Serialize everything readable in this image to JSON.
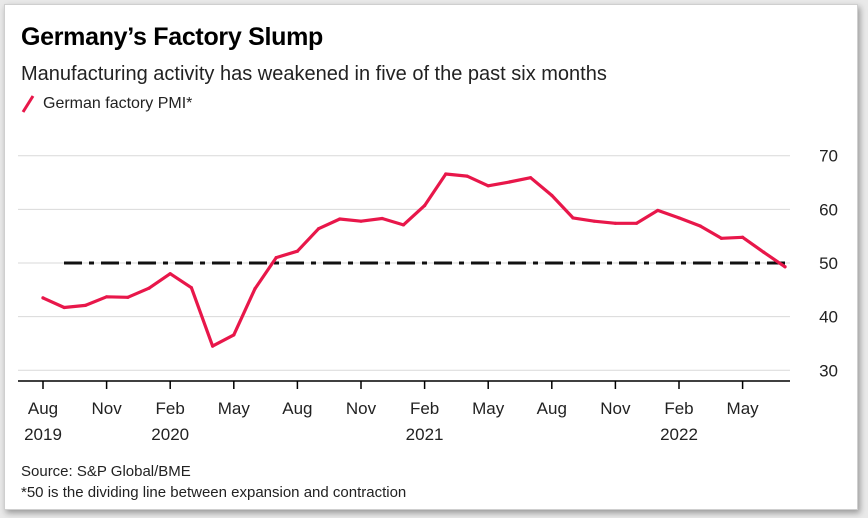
{
  "title": "Germany’s Factory Slump",
  "subtitle": "Manufacturing activity has weakened in five of the past six months",
  "source": "Source: S&P Global/BME",
  "footnote": "*50 is the dividing line between expansion and contraction",
  "colors": {
    "series": "#e8174a",
    "reference": "#111111",
    "grid": "#d9d9d9",
    "axis": "#000000"
  },
  "chart_data": {
    "type": "line",
    "title": "Germany’s Factory Slump",
    "subtitle": "Manufacturing activity has weakened in five of the past six months",
    "ylim": [
      28,
      72
    ],
    "yticks": [
      30,
      40,
      50,
      60,
      70
    ],
    "grid": true,
    "legend_position": "top-left",
    "x_tick_labels": [
      {
        "month": "Aug",
        "year": "2019",
        "index": 0
      },
      {
        "month": "Nov",
        "year": "",
        "index": 3
      },
      {
        "month": "Feb",
        "year": "2020",
        "index": 6
      },
      {
        "month": "May",
        "year": "",
        "index": 9
      },
      {
        "month": "Aug",
        "year": "",
        "index": 12
      },
      {
        "month": "Nov",
        "year": "",
        "index": 15
      },
      {
        "month": "Feb",
        "year": "2021",
        "index": 18
      },
      {
        "month": "May",
        "year": "",
        "index": 21
      },
      {
        "month": "Aug",
        "year": "",
        "index": 24
      },
      {
        "month": "Nov",
        "year": "",
        "index": 27
      },
      {
        "month": "Feb",
        "year": "2022",
        "index": 30
      },
      {
        "month": "May",
        "year": "",
        "index": 33
      }
    ],
    "series": [
      {
        "name": "German factory PMI*",
        "x": [
          "2019-08",
          "2019-09",
          "2019-10",
          "2019-11",
          "2019-12",
          "2020-01",
          "2020-02",
          "2020-03",
          "2020-04",
          "2020-05",
          "2020-06",
          "2020-07",
          "2020-08",
          "2020-09",
          "2020-10",
          "2020-11",
          "2020-12",
          "2021-01",
          "2021-02",
          "2021-03",
          "2021-04",
          "2021-05",
          "2021-06",
          "2021-07",
          "2021-08",
          "2021-09",
          "2021-10",
          "2021-11",
          "2021-12",
          "2022-01",
          "2022-02",
          "2022-03",
          "2022-04",
          "2022-05",
          "2022-06",
          "2022-07"
        ],
        "values": [
          43.5,
          41.7,
          42.1,
          43.7,
          43.6,
          45.3,
          48.0,
          45.4,
          34.5,
          36.6,
          45.2,
          51.0,
          52.2,
          56.4,
          58.2,
          57.8,
          58.3,
          57.1,
          60.7,
          66.6,
          66.2,
          64.4,
          65.1,
          65.9,
          62.6,
          58.4,
          57.8,
          57.4,
          57.4,
          59.8,
          58.4,
          56.9,
          54.6,
          54.8,
          52.0,
          49.3
        ]
      }
    ],
    "reference_line": {
      "y": 50,
      "style": "dash-dot"
    }
  }
}
